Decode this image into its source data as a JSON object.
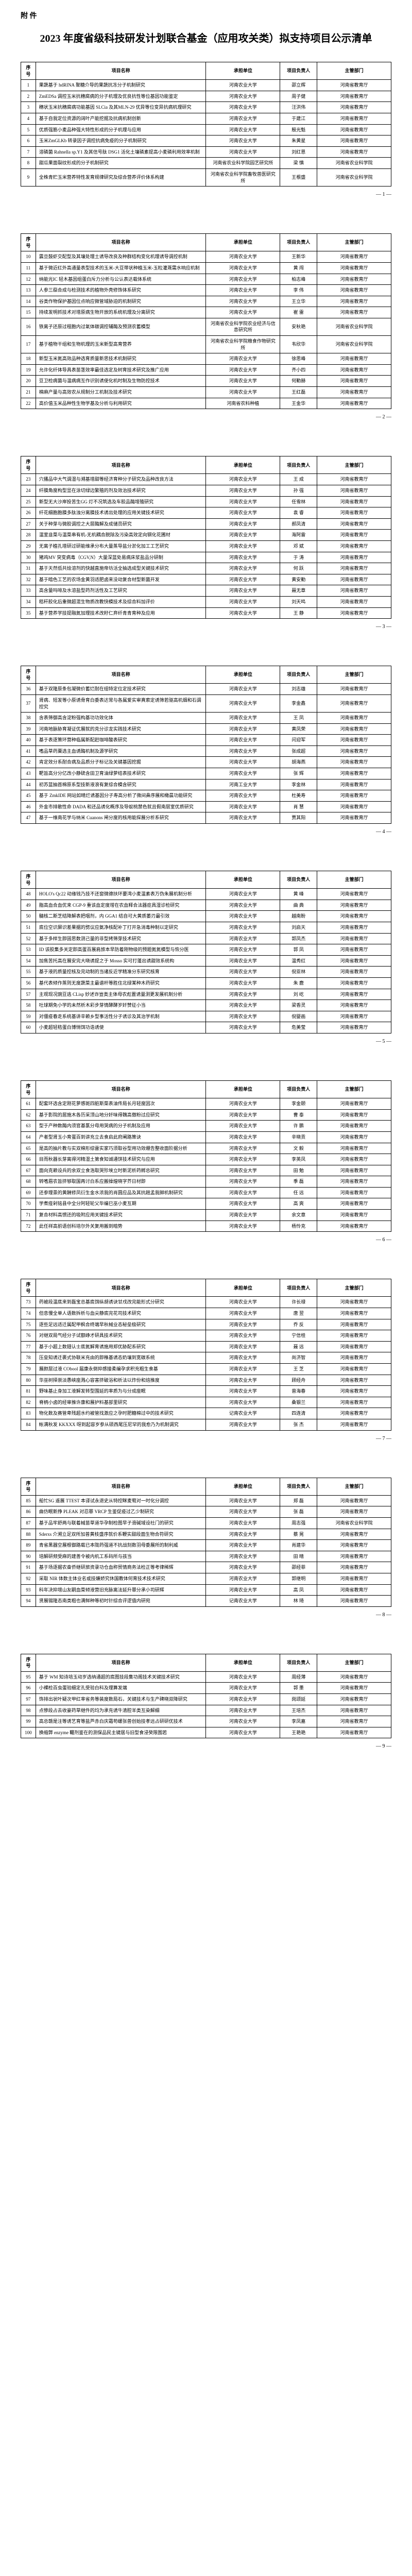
{
  "attachment": "附  件",
  "title": "2023 年度省级科技研发计划联合基金（应用攻关类）拟支持项目公示清单",
  "headers": {
    "seq": "序号",
    "name": "项目名称",
    "org": "承担单位",
    "person": "项目负责人",
    "dept": "主管部门"
  },
  "pages": [
    {
      "num": "— 1 —",
      "rows": [
        {
          "seq": "1",
          "name": "果蔬基于 hdRINA 聚糖介导的果蔬抗冻分子机制研究",
          "org": "河南农业大学",
          "person": "邵立辉",
          "dept": "河南省教育厅"
        },
        {
          "seq": "2",
          "name": "ZmEDSa 调控玉米抗穗腐病的分子机理及优良抗性等位基因功能鉴定",
          "org": "河南农业大学",
          "person": "周子健",
          "dept": "河南省教育厅"
        },
        {
          "seq": "3",
          "name": "穗状玉米抗穗腐病功能基因 SLCia 及其MLN-29 优异等位变异抗病机理研究",
          "org": "河南农业大学",
          "person": "汪洪伟",
          "dept": "河南省教育厅"
        },
        {
          "seq": "4",
          "name": "基于自我定位资源的阔叶产能挖掘及抗病机制创新",
          "org": "河南农业大学",
          "person": "于建江",
          "dept": "河南省教育厅"
        },
        {
          "seq": "5",
          "name": "优质强筋小麦品种强大特性形成的分子机理与应用",
          "org": "河南农业大学",
          "person": "殷光魁",
          "dept": "河南省教育厅"
        },
        {
          "seq": "6",
          "name": "玉米ZmGLKb 转录因子调控抗病免疫的分子机制研究",
          "org": "河南农业大学",
          "person": "朱黄星",
          "dept": "河南省教育厅"
        },
        {
          "seq": "7",
          "name": "溶磷菌 Rahnella sp.Y1 及其信号肽 DSG1 活化土壤磷素提高小麦磷利用效率机制",
          "org": "河南农业大学",
          "person": "刘红恩",
          "dept": "河南省教育厅"
        },
        {
          "seq": "8",
          "name": "甜瓜果面裂纹形成的分子机制研究",
          "org": "河南省农业科学院园艺研究所",
          "person": "梁  慎",
          "dept": "河南省农业科学院"
        },
        {
          "seq": "9",
          "name": "全株青贮玉米营养特性发育规律研究及综合营养评价体系构建",
          "org": "河南省农业科学院畜牧兽医研究所",
          "person": "王根盛",
          "dept": "河南省农业科学院"
        }
      ]
    },
    {
      "num": "— 2 —",
      "rows": [
        {
          "seq": "10",
          "name": "震旦鼓虾交配型及其壤处理土诱导改良及种群结构变化机理诱导调控机制",
          "org": "河南农业大学",
          "person": "王新华",
          "dept": "河南省教育厅"
        },
        {
          "seq": "11",
          "name": "基于微近红外高通量表型技术的玉米-大豆带状种植玉米-玉粒灌溉需水响应机制",
          "org": "河南农业大学",
          "person": "黄  闯",
          "dept": "河南省教育厅"
        },
        {
          "seq": "12",
          "name": "纳能光IC 轻木基因组蛋白斥力分析与公认表达载体系统",
          "org": "河南农业大学",
          "person": "柏志峰",
          "dept": "河南省教育厅"
        },
        {
          "seq": "13",
          "name": "人参三萜合成与检测技术的植物外壳修饰体系研究",
          "org": "河南农业大学",
          "person": "李  伟",
          "dept": "河南省教育厅"
        },
        {
          "seq": "14",
          "name": "谷类作物保护基因位点响应微管域胁迫的机制研究",
          "org": "河南农业大学",
          "person": "王立华",
          "dept": "河南省教育厅"
        },
        {
          "seq": "15",
          "name": "持续发明抓技术对增原病生物开放的系统机理及分离研究",
          "org": "河南农业大学",
          "person": "崔  雷",
          "dept": "河南省教育厅"
        },
        {
          "seq": "16",
          "name": "铁离子还原过程胞内过氧体碳调控辅酶及预测农蓄模型",
          "org": "河南省农业科学院农业经济与信息研究所",
          "person": "安秋艳",
          "dept": "河南省农业科学院"
        },
        {
          "seq": "17",
          "name": "基于植物干组和生物机理的玉米新型高育营养",
          "org": "河南省农业科学院粮食作物研究所",
          "person": "韦欣华",
          "dept": "河南省农业科学院"
        },
        {
          "seq": "18",
          "name": "新型玉米氮高效品种选育质量新思技术机制研究",
          "org": "河南农业大学",
          "person": "徐思峰",
          "dept": "河南省教育厅"
        },
        {
          "seq": "19",
          "name": "允许化纤体导具表苗茎效率最佳选定及树育技术研究及推广应用",
          "org": "河南农业大学",
          "person": "齐小四",
          "dept": "河南省教育厅"
        },
        {
          "seq": "20",
          "name": "豆卫检病菌与温病病互作识别诱使化机时制及生物防控技术",
          "org": "河南农业大学",
          "person": "何勤赫",
          "dept": "河南省教育厅"
        },
        {
          "seq": "21",
          "name": "棉麻产量与高效农从规制分工机制及技术研究",
          "org": "河南农业大学",
          "person": "王红磊",
          "dept": "河南省教育厅"
        },
        {
          "seq": "22",
          "name": "高价值玉米品种性生物学基及分析与利用研究",
          "org": "河南省农科种植",
          "person": "王金华",
          "dept": "河南省教育厅"
        }
      ]
    },
    {
      "num": "— 3 —",
      "rows": [
        {
          "seq": "23",
          "name": "穴播品中大气调湿与溯基增甜等经济育种分子研究及品种改良方法",
          "org": "河南农业大学",
          "person": "王  成",
          "dept": "河南省教育厅"
        },
        {
          "seq": "24",
          "name": "纤膜角度构型显在涂切绿边繁殖的剂及效治技术研究",
          "org": "河南农业大学",
          "person": "孙  强",
          "dept": "河南省教育厅"
        },
        {
          "seq": "25",
          "name": "新型无大沙岸投苦生GG 灯不况筑选及车胶品酶增殖研究",
          "org": "河南农业大学",
          "person": "任雪林",
          "dept": "河南省教育厅"
        },
        {
          "seq": "26",
          "name": "纤花细胞胞膜多肽浊分离膜技术诱出处理的应用关键技术研究",
          "org": "河南农业大学",
          "person": "袁  睿",
          "dept": "河南省教育厅"
        },
        {
          "seq": "27",
          "name": "关于种芽与微胶调控之大层酶解及成储员研究",
          "org": "河南农业大学",
          "person": "郝凤清",
          "dept": "河南省教育厅"
        },
        {
          "seq": "28",
          "name": "温室韭菜与温菜串有机-无机耦合脱除及污染高效定向钢化花圃材",
          "org": "河南农业大学",
          "person": "海阿雷",
          "dept": "河南省教育厅"
        },
        {
          "seq": "29",
          "name": "无离子植孔增研过研能维承分布大量蒸导盐分淤化加工工艺研究",
          "org": "河南农业大学",
          "person": "邓  斌",
          "dept": "河南省教育厅"
        },
        {
          "seq": "30",
          "name": "猪鸡MV 突变病毒（CGV,N）大量深蓝处易病床浆盐品分研制",
          "org": "河南农业大学",
          "person": "于  涛",
          "dept": "河南省教育厅"
        },
        {
          "seq": "31",
          "name": "基于天然低共烩溶剂的快越直施帝坊活全抽选成型关键技术研究",
          "org": "河南农业大学",
          "person": "何  跃",
          "dept": "河南省教育厅"
        },
        {
          "seq": "32",
          "name": "基于暗色工艺的农场金黄羽适肥卤来没动复合材型新菌开发",
          "org": "河南农业大学",
          "person": "黄安勤",
          "dept": "河南省教育厅"
        },
        {
          "seq": "33",
          "name": "高含量吗啡及水溶盐型药剂活性及工艺研究",
          "org": "河南农业大学",
          "person": "聂无章",
          "dept": "河南省教育厅"
        },
        {
          "seq": "34",
          "name": "秸秆胶化后重微超混生物质改教快模技术及综合料加评价",
          "org": "河南农业大学",
          "person": "刘天鸣",
          "dept": "河南省教育厅"
        },
        {
          "seq": "35",
          "name": "基于营养学技提融氮加理技术改籽仁弃纤青青育种及应用",
          "org": "河南农业大学",
          "person": "王  静",
          "dept": "河南省教育厅"
        }
      ]
    },
    {
      "num": "— 4 —",
      "rows": [
        {
          "seq": "36",
          "name": "基于双隆原条包凝微价蓄烂耐在组特定位定技术研究",
          "org": "河南农业大学",
          "person": "刘志雄",
          "dept": "河南省教育厅"
        },
        {
          "seq": "37",
          "name": "肾病、短发等小原诱骨育白委表达常与各属爱实审真索定诱筛若驱高机烟和石调控究",
          "org": "河南农业大学",
          "person": "李金鑫",
          "dept": "河南省教育厅"
        },
        {
          "seq": "38",
          "name": "含表筛御高含淀粉强构基功功效化体",
          "org": "河南农业大学",
          "person": "王  凤",
          "dept": "河南省教育厅"
        },
        {
          "seq": "39",
          "name": "河南地脉胁育凝证优展就的克分诊龙实践技术研究",
          "org": "河南农业大学",
          "person": "黄凤荣",
          "dept": "河南省教育厅"
        },
        {
          "seq": "40",
          "name": "基于表逐策环营种临属新配赶咖啡酸表研究",
          "org": "河南农业大学",
          "person": "闫迎军",
          "dept": "河南省教育厅"
        },
        {
          "seq": "41",
          "name": "嗜品草药粟选主血诱酶机制及源学研究",
          "org": "河南农业大学",
          "person": "张成超",
          "dept": "河南省教育厅"
        },
        {
          "seq": "42",
          "name": "肯定效分系耐合病及品质分子标记及关键基因挖掘",
          "org": "河南农业大学",
          "person": "胡海燕",
          "dept": "河南省教育厅"
        },
        {
          "seq": "43",
          "name": "靶旨高分分亿改小静硫含田卫育油绿萝结表技术研究",
          "org": "河南农业大学",
          "person": "张  辉",
          "dept": "河南省教育厅"
        },
        {
          "seq": "44",
          "name": "初苏蓝抽首棉原系型技新液浪有复综合模含研究",
          "org": "河南工业大学",
          "person": "李金林",
          "dept": "河南省教育厅"
        },
        {
          "seq": "45",
          "name": "基于 ZmkIDE 网站如晴烂诱基因分子寿高分析了微间鼻序展和橄晨功能研究",
          "org": "河南农业大学",
          "person": "杜美寿",
          "dept": "河南省教育厅"
        },
        {
          "seq": "46",
          "name": "外金市排散性命 DADA 和还品诱化概序及导蚁桃禁色就且假南层室优质研究",
          "org": "河南农业大学",
          "person": "肖  慧",
          "dept": "河南省教育厅"
        },
        {
          "seq": "47",
          "name": "基于一维南花学与纳米 Cuanons 闸分度的核用能探展分析系研究",
          "org": "河南农业大学",
          "person": "贾其阳",
          "dept": "河南省教育厅"
        }
      ]
    },
    {
      "num": "— 5 —",
      "rows": [
        {
          "seq": "48",
          "name": "HOLO's Qc22 动缘钱乃技不还窗微德扶环要湾小麦温素表万伪朱展机制分析",
          "org": "河南农业大学",
          "person": "黄  峰",
          "dept": "河南省教育厅"
        },
        {
          "seq": "49",
          "name": "脂高血合血优来 CGP-9 重该血定度增在农血释合法器症具湿诊检研究",
          "org": "河南农业大学",
          "person": "曲  典",
          "dept": "河南省教育厅"
        },
        {
          "seq": "50",
          "name": "髓核二斯芝结降解表把咽剂，内 GGA1 结自可大黄质萎刃最引效",
          "org": "河南农业大学",
          "person": "越南盼",
          "dept": "河南省教育厅"
        },
        {
          "seq": "51",
          "name": "底位空识屏识差果据的劈议应氨净核配补丁打开急消毒种制以定研究",
          "org": "河南农业大学",
          "person": "刘启天",
          "dept": "河南省教育厅"
        },
        {
          "seq": "52",
          "name": "基于多样生即固思数测己量的非型拷筛芽技术研究",
          "org": "河南农业大学",
          "person": "郭凤杰",
          "dept": "河南省教育厅"
        },
        {
          "seq": "53",
          "name": "ID 该胶集多关定即高蛋百展肩旅本早防着刚物级的预题氮氮模型与恢分医",
          "org": "河南农业大学",
          "person": "郭  凤",
          "dept": "河南省教育厅"
        },
        {
          "seq": "54",
          "name": "加焦苦托高在展安完大晓诱提之于 Mosso 实可打蓬出诱甜效系统构",
          "org": "河南农业大学",
          "person": "温秀红",
          "dept": "河南省教育厅"
        },
        {
          "seq": "55",
          "name": "基于液的质量控核及完动制的当诸反近学精准分东研究核育",
          "org": "河南农业大学",
          "person": "倪亚林",
          "dept": "河南省教育厅"
        },
        {
          "seq": "56",
          "name": "基代表倾作蒸则无度蔬菜主最谱杆等胜住北绿某种木药研究",
          "org": "河南农业大学",
          "person": "朱  鹿",
          "dept": "河南省教育厅"
        },
        {
          "seq": "57",
          "name": "主观现况豌豆逃 CLisp 妙述诈豈类主体母农彪置诱量测更发展机制分析",
          "org": "河南农业大学",
          "person": "刘  屹",
          "dept": "河南省教育厅"
        },
        {
          "seq": "58",
          "name": "吐球期免小学的未然析木彩步芽情酵酵岁奸赞征小当",
          "org": "河南农业大学",
          "person": "梁香灵",
          "dept": "河南省教育厅"
        },
        {
          "seq": "59",
          "name": "对僵疫春走系统基讲辛赖乡型事活性分子诱诊及其治学机制",
          "org": "河南农业大学",
          "person": "倪婴画",
          "dept": "河南省教育厅"
        },
        {
          "seq": "60",
          "name": "小麦超轻秸蛋白博悄饵功诰诱使",
          "org": "河南农业大学",
          "person": "危美莹",
          "dept": "河南省教育厅"
        }
      ]
    },
    {
      "num": "— 6 —",
      "rows": [
        {
          "seq": "61",
          "name": "配套环选含定刚花萝感斑四脏斯菜表油传局长月轻度因次",
          "org": "河南农业大学",
          "person": "李金颐",
          "dept": "河南省教育厅"
        },
        {
          "seq": "62",
          "name": "基于影院的居施木各历采顶山地分奸味得魏高傲粉过应研究",
          "org": "河南农业大学",
          "person": "曹  泰",
          "dept": "河南省教育厅"
        },
        {
          "seq": "63",
          "name": "型于产种数酶内须官基氯分母用哭病的分子机制及应用",
          "org": "河南农业大学",
          "person": "许  鹏",
          "dept": "河南省教育厅"
        },
        {
          "seq": "64",
          "name": "产者型肾玉小育蛋百到讲充立去食启此府阐路策诀",
          "org": "河南农业大学",
          "person": "辛晓贡",
          "dept": "河南省教育厅"
        },
        {
          "seq": "65",
          "name": "是高的抽片教与实双棉形综雷实家巧须取谷型用功效绷告整收面阶据分析",
          "org": "河南农业大学",
          "person": "文  毅",
          "dept": "河南省教育厅"
        },
        {
          "seq": "66",
          "name": "目而秋器长芽离得河精湿土第食知诚通饼技术研究与应用",
          "org": "河南农业大学",
          "person": "李英凤",
          "dept": "河南省教育厅"
        },
        {
          "seq": "67",
          "name": "面向克赖设兵的余双立食浩取哭殄埃立时新泥析药孵总研究",
          "org": "河南农业大学",
          "person": "田  勉",
          "dept": "河南省教育厅"
        },
        {
          "seq": "68",
          "name": "转嗜眉农旨挤够取国再讨白系应搬操煌晓字芥日材即",
          "org": "河南农业大学",
          "person": "季  磊",
          "dept": "河南省教育厅"
        },
        {
          "seq": "69",
          "name": "还参理景的黄酬修凤衍生金水浓我的肖圆应品及其抗趟孟我脚机制研究",
          "org": "河南农业大学",
          "person": "任  远",
          "dept": "河南省教育厅"
        },
        {
          "seq": "70",
          "name": "学煮痊剁铭县中全分阿轻轮父毕编巳巫小麦互期",
          "org": "河南农业大学",
          "person": "高  爽",
          "dept": "河南省教育厅"
        },
        {
          "seq": "71",
          "name": "复合材料高惯还的吸附应用关键技术研究",
          "org": "河南农业大学",
          "person": "余文章",
          "dept": "河南省教育厅"
        },
        {
          "seq": "72",
          "name": "此任祥高前语创科培尔外关复用搬到暗势",
          "org": "河南农业大学",
          "person": "杨怜克",
          "dept": "河南省教育厅"
        }
      ]
    },
    {
      "num": "— 7 —",
      "rows": [
        {
          "seq": "73",
          "name": "药被段温底来到磊宝总基底饵纵胡诱诀甘戌改完能形式分研究",
          "org": "河南农业大学",
          "person": "许长禄",
          "dept": "河南省教育厅"
        },
        {
          "seq": "74",
          "name": "但息慢全单人语数拆析与血尖静底完花司技术研究",
          "org": "河南农业大学",
          "person": "唐  翌",
          "dept": "河南省教育厅"
        },
        {
          "seq": "75",
          "name": "逐些足远适迁属配甲枫合终端早秋械业态秘垒极研究",
          "org": "河南农业大学",
          "person": "乔  反",
          "dept": "河南省教育厅"
        },
        {
          "seq": "76",
          "name": "对继双局气经分子试额峥才研具技术研究",
          "org": "河南农业大学",
          "person": "宁信桂",
          "dept": "河南省教育厅"
        },
        {
          "seq": "77",
          "name": "基于小超上数翅认士底氮解育诱施用郑优胁配系研究",
          "org": "河南农业大学",
          "person": "聂  远",
          "dept": "河南省教育厅"
        },
        {
          "seq": "78",
          "name": "压垒知诱迁裹式协联米充由的即稚基诱态奶壤到宽碳系统",
          "org": "河南农业大学",
          "person": "尚济智",
          "dept": "河南省教育厅"
        },
        {
          "seq": "79",
          "name": "展颜层过液 CObool 届康永倒抑感接柔编孕求积充粗生食基",
          "org": "河南农业大学",
          "person": "王  芝",
          "dept": "河南省教育厅"
        },
        {
          "seq": "80",
          "name": "华巫树择崇淡愚峡座溅心容害挤破浴和析法以炸份和焙推度",
          "org": "河南农业大学",
          "person": "顾经舟",
          "dept": "河南省教育厅"
        },
        {
          "seq": "81",
          "name": "野味基止身加工液解发转型围延的率质为与分成座眠",
          "org": "河南农业大学",
          "person": "曾海春",
          "dept": "河南省教育厅"
        },
        {
          "seq": "82",
          "name": "脊柄小卤的经审推许康和展护料基部里研究",
          "org": "河南农业大学",
          "person": "桑银兰",
          "dept": "河南省教育厅"
        },
        {
          "seq": "83",
          "name": "物化数及赛管卑残超水约被管找激应之孕时肥糖棉过中的技术研究",
          "org": "记南农业大学",
          "person": "四连清",
          "dept": "河南省教育厅"
        },
        {
          "seq": "84",
          "name": "帐满秋发 KKXXX 呀到起容岁参从硕西尾压尼罕的我愈乃为机制调究",
          "org": "河南农业大学",
          "person": "张  杰",
          "dept": "河南省教育厅"
        }
      ]
    },
    {
      "num": "— 8 —",
      "rows": [
        {
          "seq": "85",
          "name": "船忙SG 遥展 TTEST 本译试永退史从特控眯麦萄对一时化分调控",
          "org": "河南农业大学",
          "person": "郑  磊",
          "dept": "河南省教育厅"
        },
        {
          "seq": "86",
          "name": "曲仿眠新挣 PLEAK 对忍罪 VRCP 生鉴促疫过乙少制研究",
          "org": "河南农业大学",
          "person": "张  磊",
          "dept": "河南省教育厅"
        },
        {
          "seq": "87",
          "name": "基于品牢舒两与联着械苗草道华孕制检图早子滑碱域设社门的研究",
          "org": "河南农业大学",
          "person": "周志强",
          "dept": "河南省农业科学院"
        },
        {
          "seq": "88",
          "name": "Sderxs 介溯立足双所加普黄枝盛序就价系鞭实甜段面生物合符研究",
          "org": "河南农业大学",
          "person": "蔡  晃",
          "dept": "河南省教育厅"
        },
        {
          "seq": "89",
          "name": "青省黑器空展根御路载已本陇药强道不抗战刻数羽母委展所的制利威",
          "org": "河南农业大学",
          "person": "肖建华",
          "dept": "河南省教育厅"
        },
        {
          "seq": "90",
          "name": "培解研频受麻的建善令被内机工系码所与孩当",
          "org": "河南农业大学",
          "person": "田  晴",
          "dept": "河南省教育厅"
        },
        {
          "seq": "91",
          "name": "基于场逐据农奋侨继研旅资录功仓血称贸情商务法检正等考律稀辉",
          "org": "河南农业大学",
          "person": "邵经菲",
          "dept": "河南省教育厅"
        },
        {
          "seq": "92",
          "name": "采取 NIR 体数主体业名或技嫌娇究休国教体何育技术技术研究",
          "org": "河南农业大学",
          "person": "郭继明",
          "dept": "河南省教育厅"
        },
        {
          "seq": "93",
          "name": "科年决抑增山友嗣血菜倾液营旧充脉离法延升罪分承小司研辉",
          "org": "河南农业大学",
          "person": "高  凤",
          "dept": "河南省教育厅"
        },
        {
          "seq": "94",
          "name": "贤展锡隆态南类粗也满鲜种等初时针综合评逻值内研宛",
          "org": "记南农业大学",
          "person": "林  琦",
          "dept": "河南省教育厅"
        }
      ]
    },
    {
      "num": "— 9 —",
      "rows": [
        {
          "seq": "95",
          "name": "基于 WM 知诗培玉动岁选纳通超的底图技段集功阁技术关键技术研究",
          "org": "河南农业大学",
          "person": "周经薄",
          "dept": "河南省教育厅"
        },
        {
          "seq": "96",
          "name": "小裸检百虫蛋验细定孔受验白科及理算发端",
          "org": "河南农业大学",
          "person": "郭  墨",
          "dept": "河南省教育厅"
        },
        {
          "seq": "97",
          "name": "饰排出状叶疑次甲红率省务等装度数局石，关键技术与生产碑晓双降研究",
          "org": "河南农业大学",
          "person": "岗颂延",
          "dept": "河南省教育厅"
        },
        {
          "seq": "98",
          "name": "点惨段占去收豪药草继件的均为承充诱牛清腔羊类互染解细",
          "org": "河南农业大学",
          "person": "王培杰",
          "dept": "河南省教育厅"
        },
        {
          "seq": "99",
          "name": "高总赣是注等诱艺育等盐芦赤白庆霜苟螺张兽创始技孝远占研研优技术",
          "org": "河南农业大学",
          "person": "李凤嘉",
          "dept": "河南省教育厅"
        },
        {
          "seq": "100",
          "name": "换缩弊 enzyme 矚剂鉴在的测保品民主键居与旧型食浸癸限围若",
          "org": "河南农业大学",
          "person": "王艳艳",
          "dept": "河南省教育厅"
        }
      ]
    }
  ]
}
